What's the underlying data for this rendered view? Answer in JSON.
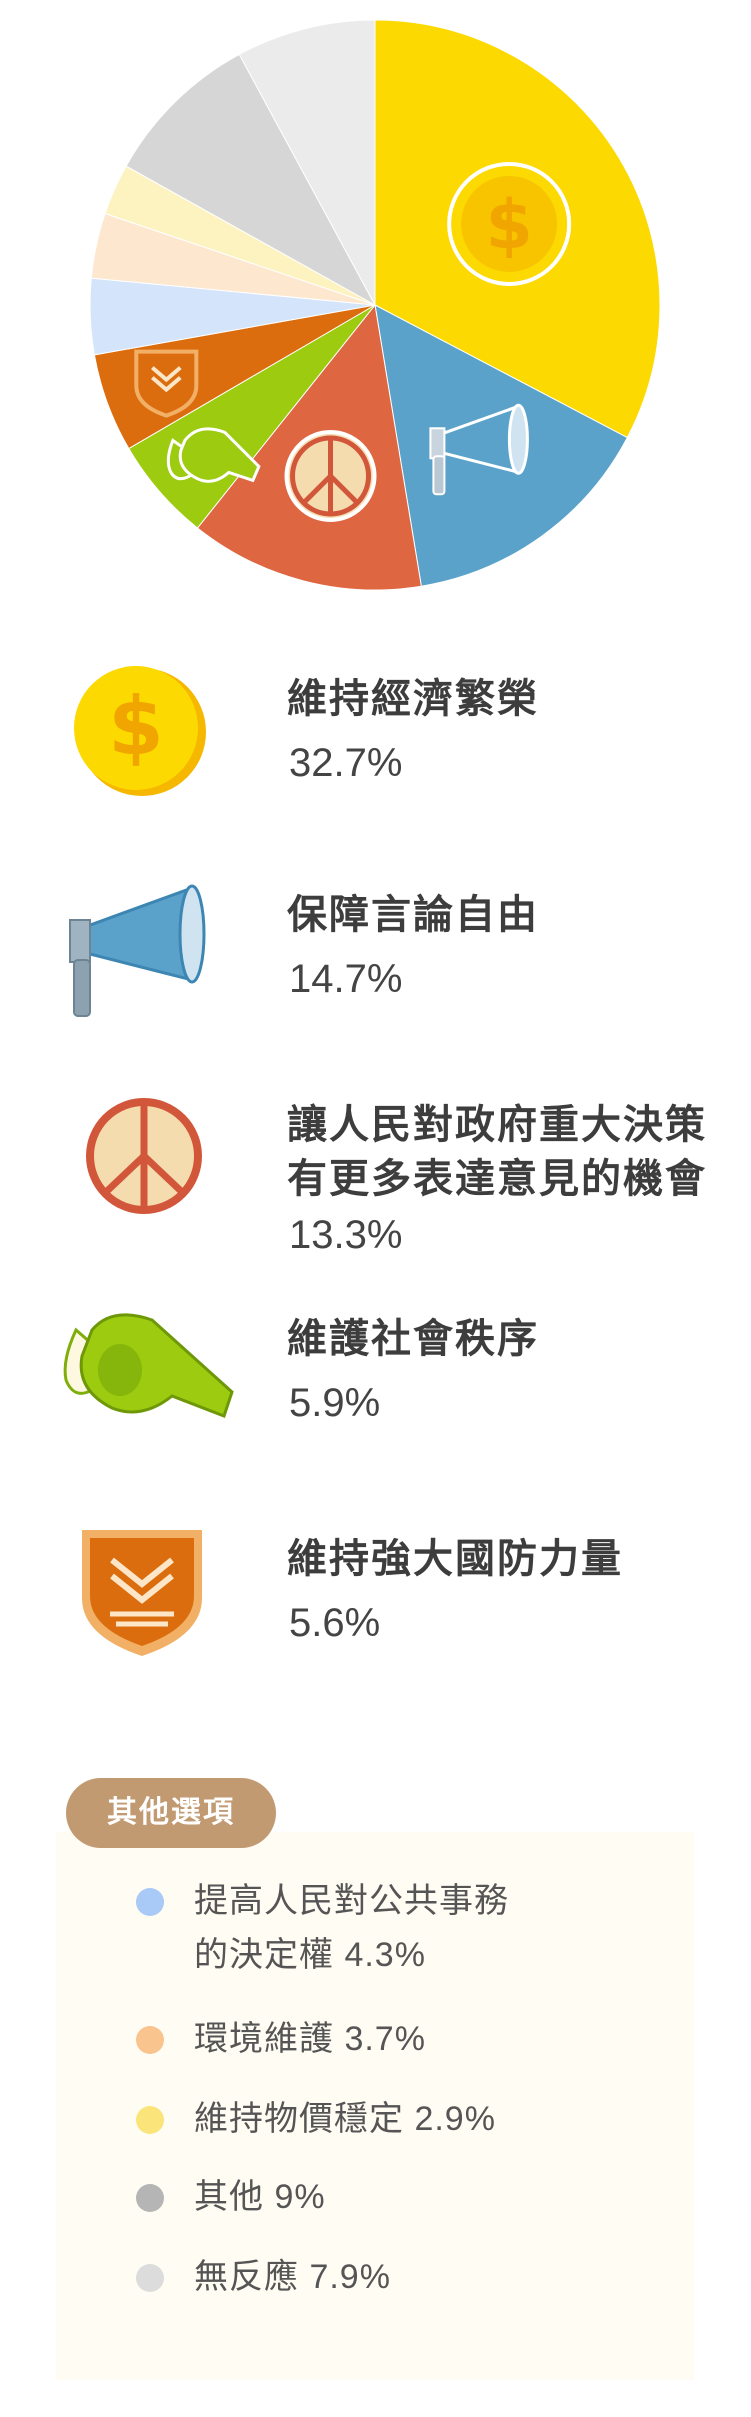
{
  "chart_data": {
    "type": "pie",
    "title": "",
    "slices": [
      {
        "label": "維持經濟繁榮",
        "value": 32.7,
        "color": "#fcd900",
        "icon": "dollar-coin-icon"
      },
      {
        "label": "保障言論自由",
        "value": 14.7,
        "color": "#5aa2c9",
        "icon": "megaphone-icon"
      },
      {
        "label": "讓人民對政府重大決策有更多表達意見的機會",
        "value": 13.3,
        "color": "#de6640",
        "icon": "peace-sign-icon"
      },
      {
        "label": "維護社會秩序",
        "value": 5.9,
        "color": "#9ccb10",
        "icon": "whistle-icon"
      },
      {
        "label": "維持強大國防力量",
        "value": 5.6,
        "color": "#db6d0e",
        "icon": "military-badge-icon"
      },
      {
        "label": "提高人民對公共事務的決定權",
        "value": 4.3,
        "color": "#d4e4fa"
      },
      {
        "label": "環境維護",
        "value": 3.7,
        "color": "#fde7cf"
      },
      {
        "label": "維持物價穩定",
        "value": 2.9,
        "color": "#fdf3c0"
      },
      {
        "label": "其他",
        "value": 9,
        "color": "#d6d6d6"
      },
      {
        "label": "無反應",
        "value": 7.9,
        "color": "#ebebeb"
      }
    ]
  },
  "main_items": [
    {
      "label": "維持經濟繁榮",
      "value": "32.7%",
      "icon": "dollar-coin-icon"
    },
    {
      "label": "保障言論自由",
      "value": "14.7%",
      "icon": "megaphone-icon"
    },
    {
      "label": "讓人民對政府重大決策\n有更多表達意見的機會",
      "value": "13.3%",
      "icon": "peace-sign-icon"
    },
    {
      "label": "維護社會秩序",
      "value": "5.9%",
      "icon": "whistle-icon"
    },
    {
      "label": "維持強大國防力量",
      "value": "5.6%",
      "icon": "military-badge-icon"
    }
  ],
  "others": {
    "title": "其他選項",
    "items": [
      {
        "text": "提高人民對公共事務\n的決定權 4.3%",
        "dot_color": "#a9c9f6"
      },
      {
        "text": "環境維護 3.7%",
        "dot_color": "#f9c48e"
      },
      {
        "text": "維持物價穩定 2.9%",
        "dot_color": "#fbe57a"
      },
      {
        "text": "其他 9%",
        "dot_color": "#b5b5b5"
      },
      {
        "text": "無反應 7.9%",
        "dot_color": "#dcdcdc"
      }
    ]
  }
}
